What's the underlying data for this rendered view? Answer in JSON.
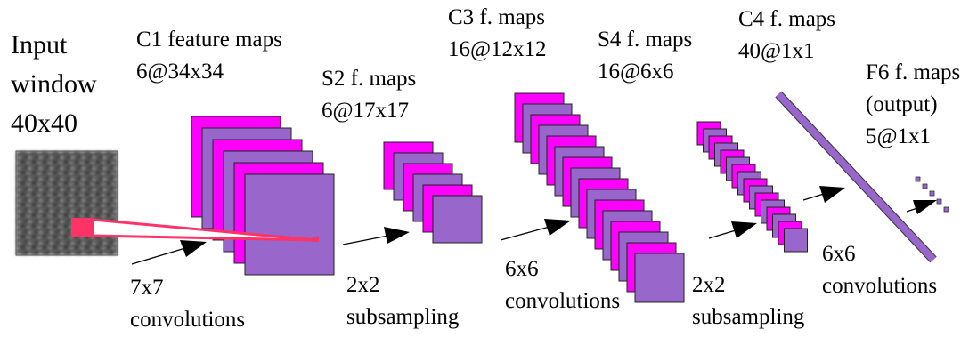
{
  "colors": {
    "magenta": "#FF00FF",
    "purple": "#9966CC",
    "receptive_field": "#FF3366",
    "text": "#000000"
  },
  "stages": {
    "input": {
      "lines": [
        "Input",
        "window",
        "40x40"
      ],
      "icon": "grayscale-texture-image"
    },
    "c1": {
      "line1": "C1 feature maps",
      "line2": "6@34x34"
    },
    "s2": {
      "line1": "S2 f. maps",
      "line2": "6@17x17"
    },
    "c3": {
      "line1": "C3 f. maps",
      "line2": "16@12x12"
    },
    "s4": {
      "line1": "S4 f. maps",
      "line2": "16@6x6"
    },
    "c4": {
      "line1": "C4 f. maps",
      "line2": "40@1x1"
    },
    "f6": {
      "line1": "F6 f. maps",
      "line2": "(output)",
      "line3": "5@1x1"
    }
  },
  "operations": {
    "op1": {
      "line1": "7x7",
      "line2": "convolutions"
    },
    "op2": {
      "line1": "2x2",
      "line2": "subsampling"
    },
    "op3": {
      "line1": "6x6",
      "line2": "convolutions"
    },
    "op4": {
      "line1": "2x2",
      "line2": "subsampling"
    },
    "op5": {
      "line1": "6x6",
      "line2": "convolutions"
    }
  }
}
